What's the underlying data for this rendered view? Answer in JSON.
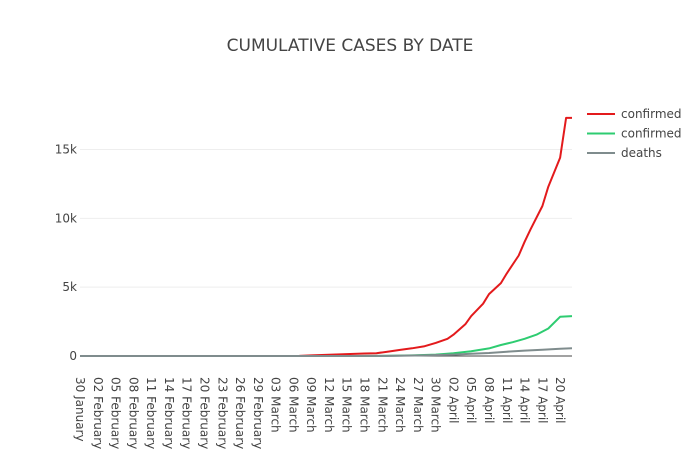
{
  "chart_data": {
    "type": "line",
    "title": "CUMULATIVE CASES BY DATE",
    "xlabel": "",
    "ylabel": "",
    "x_start": "2020-01-30",
    "x_end": "2020-04-22",
    "x_tick_labels": [
      "30 January",
      "02 February",
      "05 February",
      "08 February",
      "11 February",
      "14 February",
      "17 February",
      "20 February",
      "23 February",
      "26 February",
      "29 February",
      "03 March",
      "06 March",
      "09 March",
      "12 March",
      "15 March",
      "18 March",
      "21 March",
      "24 March",
      "27 March",
      "30 March",
      "02 April",
      "05 April",
      "08 April",
      "11 April",
      "14 April",
      "17 April",
      "20 April"
    ],
    "y_tick_labels": [
      "0",
      "5k",
      "10k",
      "15k"
    ],
    "y_ticks": [
      0,
      5000,
      10000,
      15000
    ],
    "ylim": [
      0,
      18600
    ],
    "grid": true,
    "legend_position": "top-right",
    "series": [
      {
        "name": "confirmed",
        "color": "#e31a1c",
        "points": [
          [
            "2020-01-30",
            0
          ],
          [
            "2020-02-15",
            0
          ],
          [
            "2020-03-01",
            2
          ],
          [
            "2020-03-07",
            10
          ],
          [
            "2020-03-09",
            40
          ],
          [
            "2020-03-12",
            90
          ],
          [
            "2020-03-15",
            140
          ],
          [
            "2020-03-18",
            180
          ],
          [
            "2020-03-20",
            200
          ],
          [
            "2020-03-22",
            320
          ],
          [
            "2020-03-24",
            440
          ],
          [
            "2020-03-26",
            560
          ],
          [
            "2020-03-28",
            700
          ],
          [
            "2020-03-30",
            950
          ],
          [
            "2020-04-01",
            1250
          ],
          [
            "2020-04-02",
            1550
          ],
          [
            "2020-04-04",
            2300
          ],
          [
            "2020-04-05",
            2900
          ],
          [
            "2020-04-07",
            3800
          ],
          [
            "2020-04-08",
            4500
          ],
          [
            "2020-04-10",
            5300
          ],
          [
            "2020-04-11",
            6000
          ],
          [
            "2020-04-13",
            7300
          ],
          [
            "2020-04-14",
            8300
          ],
          [
            "2020-04-15",
            9200
          ],
          [
            "2020-04-17",
            10900
          ],
          [
            "2020-04-18",
            12300
          ],
          [
            "2020-04-20",
            14400
          ],
          [
            "2020-04-21",
            17300
          ],
          [
            "2020-04-22",
            17300
          ]
        ]
      },
      {
        "name": "confirmed",
        "color": "#2ecc71",
        "points": [
          [
            "2020-01-30",
            0
          ],
          [
            "2020-03-16",
            0
          ],
          [
            "2020-03-20",
            10
          ],
          [
            "2020-03-26",
            40
          ],
          [
            "2020-03-30",
            100
          ],
          [
            "2020-04-02",
            200
          ],
          [
            "2020-04-05",
            350
          ],
          [
            "2020-04-08",
            550
          ],
          [
            "2020-04-10",
            800
          ],
          [
            "2020-04-12",
            1000
          ],
          [
            "2020-04-14",
            1250
          ],
          [
            "2020-04-16",
            1550
          ],
          [
            "2020-04-18",
            2000
          ],
          [
            "2020-04-20",
            2850
          ],
          [
            "2020-04-22",
            2900
          ]
        ]
      },
      {
        "name": "deaths",
        "color": "#7f8c8d",
        "points": [
          [
            "2020-01-30",
            0
          ],
          [
            "2020-03-16",
            0
          ],
          [
            "2020-03-22",
            10
          ],
          [
            "2020-03-28",
            40
          ],
          [
            "2020-04-02",
            100
          ],
          [
            "2020-04-05",
            160
          ],
          [
            "2020-04-08",
            220
          ],
          [
            "2020-04-11",
            310
          ],
          [
            "2020-04-14",
            390
          ],
          [
            "2020-04-17",
            460
          ],
          [
            "2020-04-20",
            520
          ],
          [
            "2020-04-22",
            560
          ]
        ]
      }
    ]
  }
}
